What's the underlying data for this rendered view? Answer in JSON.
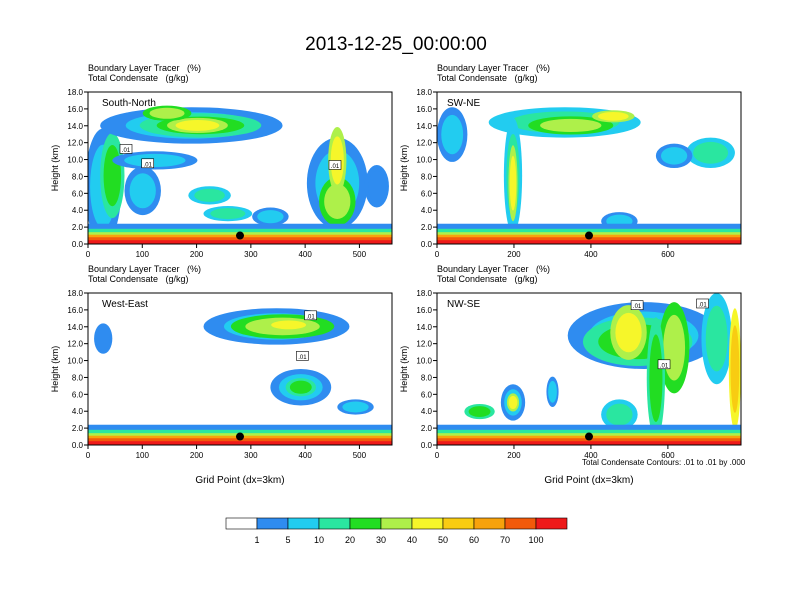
{
  "figure": {
    "title": "2013-12-25_00:00:00",
    "footnote": "Total Condensate Contours: .01 to .01 by .000"
  },
  "colors": {
    "palette": [
      "#ffffff",
      "#2f8cf0",
      "#22ccf0",
      "#2ae6a0",
      "#22dd22",
      "#aef04a",
      "#f6f62a",
      "#f8cc12",
      "#f7a20c",
      "#f25a0a",
      "#ee1a1a"
    ],
    "contour": "#000000"
  },
  "chart_data": [
    {
      "type": "heatmap",
      "panel": "South-North",
      "title_line1": "Boundary Layer Tracer   (%)",
      "title_line2": "Total Condensate   (g/kg)",
      "ylabel": "Height (km)",
      "xlabel": "",
      "xlim": [
        0,
        560
      ],
      "ylim": [
        0,
        18
      ],
      "xticks": [
        0,
        100,
        200,
        300,
        400,
        500
      ],
      "yticks": [
        "0.0",
        "2.0",
        "4.0",
        "6.0",
        "8.0",
        "10.0",
        "12.0",
        "14.0",
        "16.0",
        "18.0"
      ],
      "marker": {
        "x": 280,
        "y": 1.0
      },
      "contour_labels": [
        {
          "text": ".01",
          "x": 70,
          "y": 11.2
        },
        {
          "text": ".01",
          "x": 110,
          "y": 9.5
        },
        {
          "text": ".01",
          "x": 455,
          "y": 9.3
        }
      ]
    },
    {
      "type": "heatmap",
      "panel": "SW-NE",
      "title_line1": "Boundary Layer Tracer   (%)",
      "title_line2": "Total Condensate   (g/kg)",
      "ylabel": "Height (km)",
      "xlabel": "",
      "xlim": [
        0,
        790
      ],
      "ylim": [
        0,
        18
      ],
      "xticks": [
        0,
        200,
        400,
        600
      ],
      "yticks": [
        "0.0",
        "2.0",
        "4.0",
        "6.0",
        "8.0",
        "10.0",
        "12.0",
        "14.0",
        "16.0",
        "18.0"
      ],
      "marker": {
        "x": 395,
        "y": 1.0
      },
      "contour_labels": []
    },
    {
      "type": "heatmap",
      "panel": "West-East",
      "title_line1": "Boundary Layer Tracer   (%)",
      "title_line2": "Total Condensate   (g/kg)",
      "ylabel": "Height (km)",
      "xlabel": "Grid Point (dx=3km)",
      "xlim": [
        0,
        560
      ],
      "ylim": [
        0,
        18
      ],
      "xticks": [
        0,
        100,
        200,
        300,
        400,
        500
      ],
      "yticks": [
        "0.0",
        "2.0",
        "4.0",
        "6.0",
        "8.0",
        "10.0",
        "12.0",
        "14.0",
        "16.0",
        "18.0"
      ],
      "marker": {
        "x": 280,
        "y": 1.0
      },
      "contour_labels": [
        {
          "text": ".01",
          "x": 410,
          "y": 15.3
        },
        {
          "text": ".01",
          "x": 395,
          "y": 10.5
        }
      ]
    },
    {
      "type": "heatmap",
      "panel": "NW-SE",
      "title_line1": "Boundary Layer Tracer   (%)",
      "title_line2": "Total Condensate   (g/kg)",
      "ylabel": "Height (km)",
      "xlabel": "Grid Point (dx=3km)",
      "xlim": [
        0,
        790
      ],
      "ylim": [
        0,
        18
      ],
      "xticks": [
        0,
        200,
        400,
        600
      ],
      "yticks": [
        "0.0",
        "2.0",
        "4.0",
        "6.0",
        "8.0",
        "10.0",
        "12.0",
        "14.0",
        "16.0",
        "18.0"
      ],
      "marker": {
        "x": 395,
        "y": 1.0
      },
      "contour_labels": [
        {
          "text": ".01",
          "x": 520,
          "y": 16.5
        },
        {
          "text": ".01",
          "x": 590,
          "y": 9.5
        },
        {
          "text": ".01",
          "x": 690,
          "y": 16.7
        }
      ]
    }
  ],
  "colorbar": {
    "labels": [
      "1",
      "5",
      "10",
      "20",
      "30",
      "40",
      "50",
      "60",
      "70",
      "100"
    ]
  }
}
